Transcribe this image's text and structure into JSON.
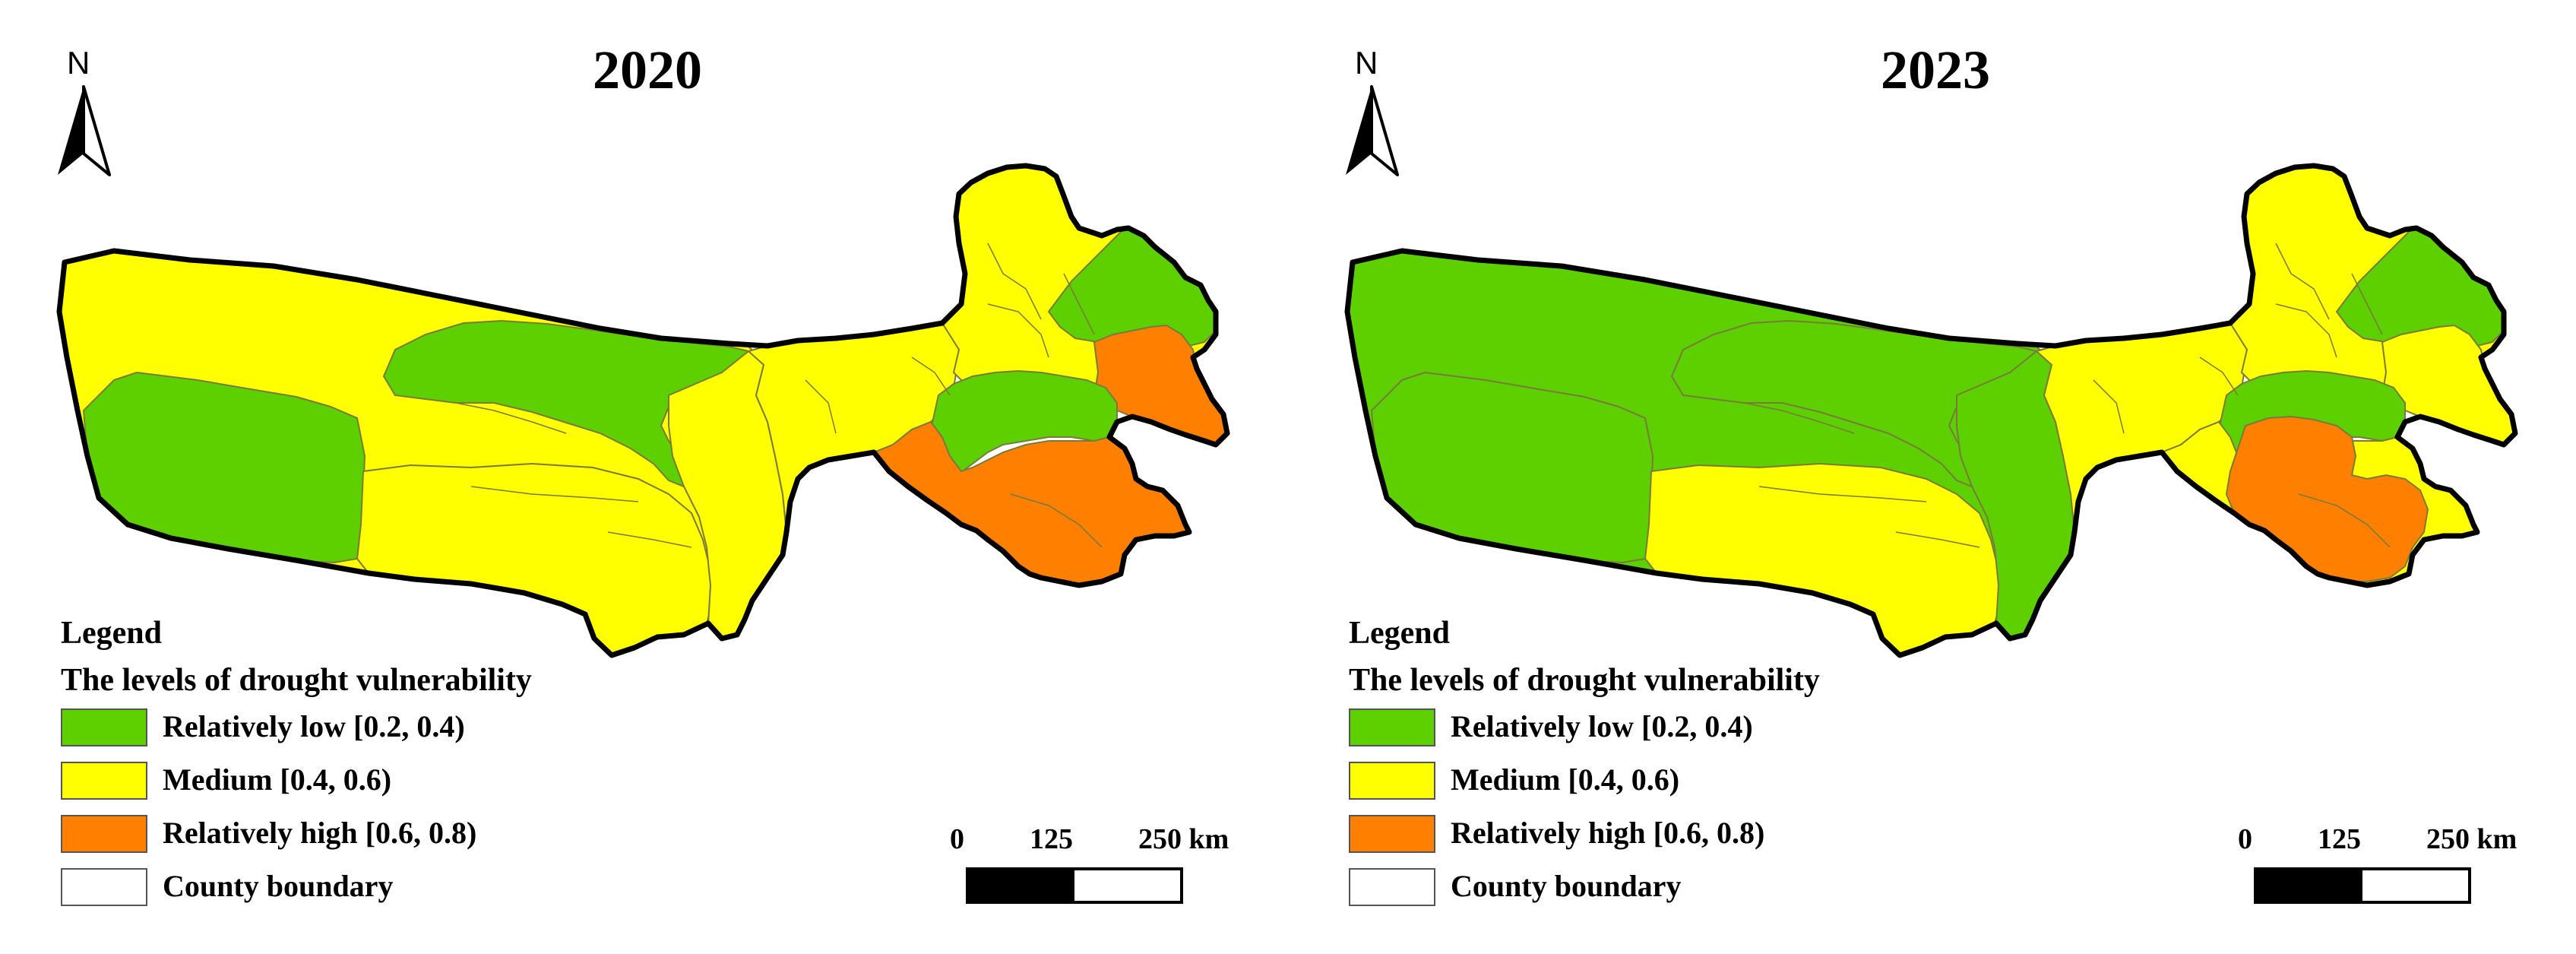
{
  "colors": {
    "relatively_low": "#5dd000",
    "medium": "#ffff00",
    "relatively_high": "#ff8000",
    "county_boundary_fill": "#ffffff",
    "county_line": "#7a7a3a",
    "outline": "#000000"
  },
  "panels": [
    {
      "year": "2020",
      "north_label": "N",
      "legend": {
        "heading": "Legend",
        "subtitle": "The levels of drought vulnerability",
        "items": [
          {
            "label": "Relatively low [0.2, 0.4)",
            "color": "relatively_low"
          },
          {
            "label": "Medium [0.4, 0.6)",
            "color": "medium"
          },
          {
            "label": "Relatively high [0.6, 0.8)",
            "color": "relatively_high"
          },
          {
            "label": "County boundary",
            "color": "county_boundary_fill"
          }
        ]
      },
      "scale": {
        "ticks": [
          "0",
          "125",
          "250 km"
        ]
      },
      "regions": [
        {
          "region": "west-main",
          "level": "medium"
        },
        {
          "region": "sw-block",
          "level": "relatively_low"
        },
        {
          "region": "north-central",
          "level": "relatively_low"
        },
        {
          "region": "south-central",
          "level": "medium"
        },
        {
          "region": "central-east",
          "level": "medium"
        },
        {
          "region": "isthmus",
          "level": "medium"
        },
        {
          "region": "ne-main",
          "level": "medium"
        },
        {
          "region": "ne-top-green",
          "level": "relatively_low"
        },
        {
          "region": "ne-east-orange",
          "level": "relatively_high"
        },
        {
          "region": "east-mid-green",
          "level": "relatively_low"
        },
        {
          "region": "se-block",
          "level": "relatively_high"
        }
      ]
    },
    {
      "year": "2023",
      "north_label": "N",
      "legend": {
        "heading": "Legend",
        "subtitle": "The levels of drought vulnerability",
        "items": [
          {
            "label": "Relatively low [0.2, 0.4)",
            "color": "relatively_low"
          },
          {
            "label": "Medium [0.4, 0.6)",
            "color": "medium"
          },
          {
            "label": "Relatively high [0.6, 0.8)",
            "color": "relatively_high"
          },
          {
            "label": "County boundary",
            "color": "county_boundary_fill"
          }
        ]
      },
      "scale": {
        "ticks": [
          "0",
          "125",
          "250 km"
        ]
      },
      "regions": [
        {
          "region": "west-main",
          "level": "relatively_low"
        },
        {
          "region": "sw-block",
          "level": "relatively_low"
        },
        {
          "region": "north-central",
          "level": "relatively_low"
        },
        {
          "region": "south-central",
          "level": "medium"
        },
        {
          "region": "central-east",
          "level": "relatively_low"
        },
        {
          "region": "isthmus",
          "level": "medium"
        },
        {
          "region": "ne-main",
          "level": "medium"
        },
        {
          "region": "ne-top-green",
          "level": "relatively_low"
        },
        {
          "region": "ne-east-orange",
          "level": "medium"
        },
        {
          "region": "east-mid-green",
          "level": "relatively_low"
        },
        {
          "region": "se-block",
          "level": "medium"
        },
        {
          "region": "se-inner-orange",
          "level": "relatively_high"
        }
      ]
    }
  ]
}
